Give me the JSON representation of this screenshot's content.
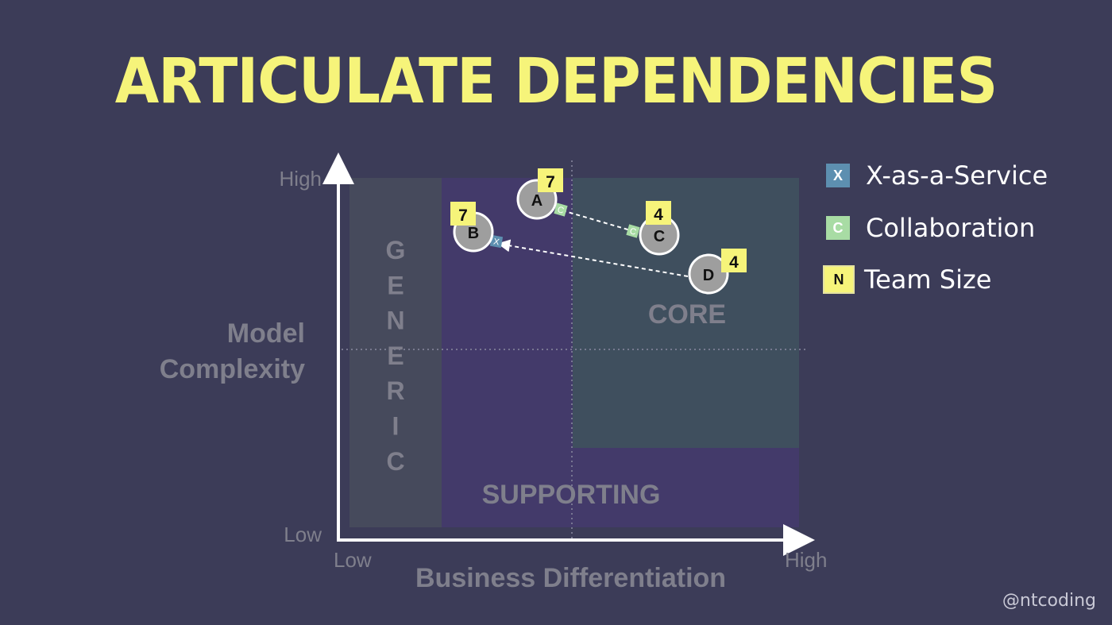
{
  "title": "ARTICULATE DEPENDENCIES",
  "axes": {
    "y_title_line1": "Model",
    "y_title_line2": "Complexity",
    "y_high": "High",
    "y_low": "Low",
    "x_title": "Business Differentiation",
    "x_low": "Low",
    "x_high": "High"
  },
  "regions": {
    "generic": [
      "G",
      "E",
      "N",
      "E",
      "R",
      "I",
      "C"
    ],
    "core": "CORE",
    "supporting": "SUPPORTING"
  },
  "teams": [
    {
      "id": "A",
      "label": "A",
      "size": "7"
    },
    {
      "id": "B",
      "label": "B",
      "size": "7"
    },
    {
      "id": "C",
      "label": "C",
      "size": "4"
    },
    {
      "id": "D",
      "label": "D",
      "size": "4"
    }
  ],
  "dependencies": [
    {
      "from": "A",
      "to": "C",
      "type": "C"
    },
    {
      "from": "D",
      "to": "B",
      "type": "X"
    }
  ],
  "legend": [
    {
      "symbol": "X",
      "label": "X-as-a-Service",
      "color": "#5d8fb0"
    },
    {
      "symbol": "C",
      "label": "Collaboration",
      "color": "#a8dca4"
    },
    {
      "symbol": "N",
      "label": "Team Size",
      "color": "#f6f47a"
    }
  ],
  "handle": "@ntcoding",
  "colors": {
    "background": "#3c3c58",
    "generic": "#464a5c",
    "supporting": "#433a6a",
    "core": "#3f4f5e",
    "accent": "#f6f47a",
    "node": "#9e9e9e"
  }
}
